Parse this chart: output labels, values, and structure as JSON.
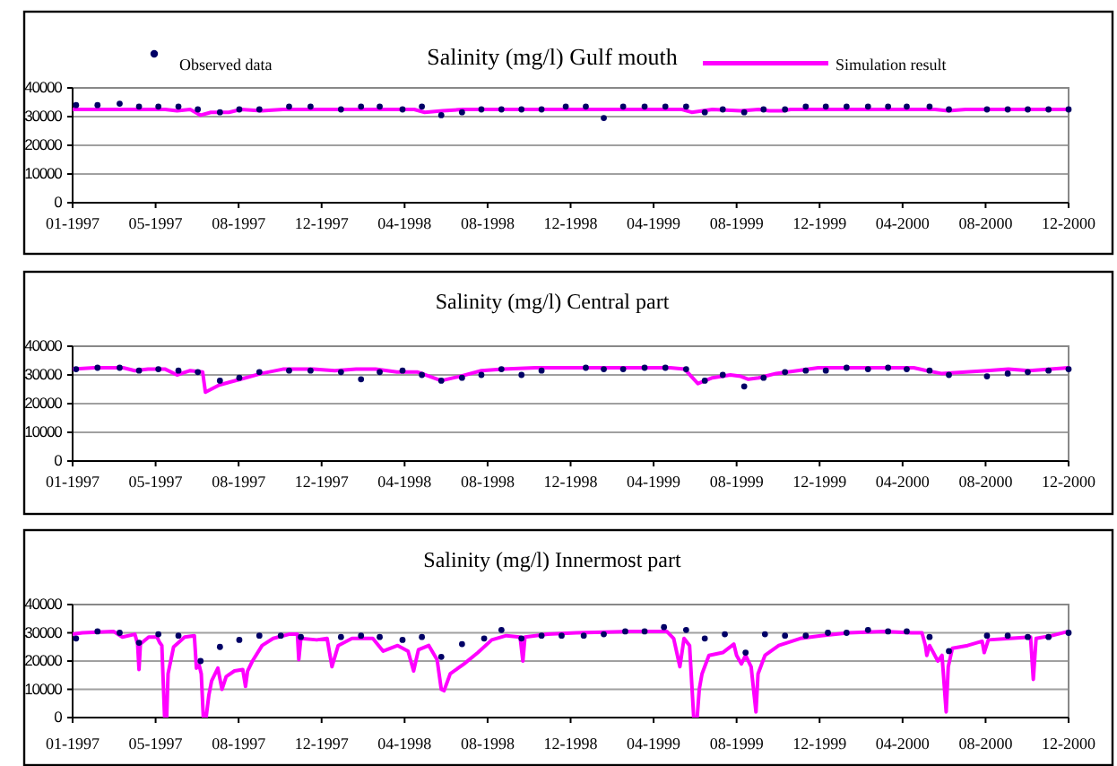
{
  "chart_data": [
    {
      "type": "line",
      "title": "Salinity (mg/l) Gulf mouth",
      "legend": "top",
      "grid": "y",
      "line_style": "solid",
      "xlim": [
        "1997-01-01",
        "2000-12-11"
      ],
      "xticks": [
        {
          "value": "1997-01-01",
          "label": "01-1997"
        },
        {
          "value": "1997-05-01",
          "label": "05-1997"
        },
        {
          "value": "1997-08-29",
          "label": "08-1997"
        },
        {
          "value": "1997-12-27",
          "label": "12-1997"
        },
        {
          "value": "1998-04-26",
          "label": "04-1998"
        },
        {
          "value": "1998-08-24",
          "label": "08-1998"
        },
        {
          "value": "1998-12-22",
          "label": "12-1998"
        },
        {
          "value": "1999-04-21",
          "label": "04-1999"
        },
        {
          "value": "1999-08-19",
          "label": "08-1999"
        },
        {
          "value": "1999-12-17",
          "label": "12-1999"
        },
        {
          "value": "2000-04-15",
          "label": "04-2000"
        },
        {
          "value": "2000-08-13",
          "label": "08-2000"
        },
        {
          "value": "2000-12-11",
          "label": "12-2000"
        }
      ],
      "ylim": [
        0,
        40000
      ],
      "yticks": [
        0,
        10000,
        20000,
        30000,
        40000
      ],
      "series": [
        {
          "name": "Observed data",
          "type": "scatter",
          "marker": "circle",
          "color": "#000066",
          "x": [
            "1997-01-06",
            "1997-02-06",
            "1997-03-10",
            "1997-04-07",
            "1997-05-05",
            "1997-06-03",
            "1997-07-01",
            "1997-08-02",
            "1997-08-30",
            "1997-09-28",
            "1997-11-10",
            "1997-12-11",
            "1998-01-24",
            "1998-02-22",
            "1998-03-21",
            "1998-04-23",
            "1998-05-21",
            "1998-06-18",
            "1998-07-18",
            "1998-08-15",
            "1998-09-13",
            "1998-10-12",
            "1998-11-10",
            "1998-12-15",
            "1999-01-13",
            "1999-02-08",
            "1999-03-08",
            "1999-04-08",
            "1999-05-08",
            "1999-06-07",
            "1999-07-04",
            "1999-07-30",
            "1999-08-30",
            "1999-09-27",
            "1999-10-28",
            "1999-11-27",
            "1999-12-26",
            "2000-01-25",
            "2000-02-25",
            "2000-03-25",
            "2000-04-21",
            "2000-05-24",
            "2000-06-21",
            "2000-08-15",
            "2000-09-14",
            "2000-10-13",
            "2000-11-12",
            "2000-12-11"
          ],
          "values": [
            34000,
            34000,
            34500,
            33500,
            33500,
            33500,
            32500,
            31500,
            32500,
            32500,
            33500,
            33500,
            32500,
            33500,
            33500,
            32500,
            33500,
            30500,
            31500,
            32500,
            32500,
            32500,
            32500,
            33500,
            33500,
            29500,
            33500,
            33500,
            33500,
            33500,
            31500,
            32500,
            31500,
            32500,
            32500,
            33500,
            33500,
            33500,
            33500,
            33500,
            33500,
            33500,
            32500,
            32500,
            32500,
            32500,
            32500,
            32500
          ]
        },
        {
          "name": "Simulation result",
          "type": "line",
          "color": "#ff00ff",
          "x": [
            "1997-01-01",
            "1997-05-15",
            "1997-06-01",
            "1997-06-20",
            "1997-07-05",
            "1997-07-20",
            "1997-08-15",
            "1997-09-01",
            "1997-10-01",
            "1997-11-01",
            "1998-05-10",
            "1998-05-25",
            "1998-06-20",
            "1998-07-20",
            "1999-06-01",
            "1999-06-15",
            "1999-07-15",
            "1999-08-25",
            "1999-09-20",
            "1999-10-05",
            "1999-10-25",
            "1999-11-05",
            "2000-06-01",
            "2000-06-20",
            "2000-07-15",
            "2000-12-11"
          ],
          "values": [
            32500,
            32500,
            32000,
            32500,
            30500,
            31500,
            31500,
            32500,
            32000,
            32500,
            32500,
            31500,
            32000,
            32500,
            32500,
            31500,
            32500,
            32000,
            32500,
            32000,
            32000,
            32500,
            32500,
            32000,
            32500,
            32500
          ]
        }
      ]
    },
    {
      "type": "line",
      "title": "Salinity (mg/l) Central part",
      "legend": false,
      "grid": "y",
      "line_style": "solid",
      "xlim": [
        "1997-01-01",
        "2000-12-11"
      ],
      "xticks": [
        {
          "value": "1997-01-01",
          "label": "01-1997"
        },
        {
          "value": "1997-05-01",
          "label": "05-1997"
        },
        {
          "value": "1997-08-29",
          "label": "08-1997"
        },
        {
          "value": "1997-12-27",
          "label": "12-1997"
        },
        {
          "value": "1998-04-26",
          "label": "04-1998"
        },
        {
          "value": "1998-08-24",
          "label": "08-1998"
        },
        {
          "value": "1998-12-22",
          "label": "12-1998"
        },
        {
          "value": "1999-04-21",
          "label": "04-1999"
        },
        {
          "value": "1999-08-19",
          "label": "08-1999"
        },
        {
          "value": "1999-12-17",
          "label": "12-1999"
        },
        {
          "value": "2000-04-15",
          "label": "04-2000"
        },
        {
          "value": "2000-08-13",
          "label": "08-2000"
        },
        {
          "value": "2000-12-11",
          "label": "12-2000"
        }
      ],
      "ylim": [
        0,
        40000
      ],
      "yticks": [
        0,
        10000,
        20000,
        30000,
        40000
      ],
      "series": [
        {
          "type": "scatter",
          "marker": "circle",
          "color": "#000066",
          "x": [
            "1997-01-06",
            "1997-02-06",
            "1997-03-10",
            "1997-04-07",
            "1997-05-05",
            "1997-06-03",
            "1997-07-01",
            "1997-08-02",
            "1997-08-30",
            "1997-09-28",
            "1997-11-10",
            "1997-12-11",
            "1998-01-24",
            "1998-02-22",
            "1998-03-21",
            "1998-04-23",
            "1998-05-21",
            "1998-06-18",
            "1998-07-18",
            "1998-08-15",
            "1998-09-13",
            "1998-10-12",
            "1998-11-10",
            "1999-01-13",
            "1999-02-08",
            "1999-03-08",
            "1999-04-08",
            "1999-05-08",
            "1999-06-07",
            "1999-07-04",
            "1999-07-30",
            "1999-08-30",
            "1999-09-27",
            "1999-10-28",
            "1999-11-27",
            "1999-12-26",
            "2000-01-25",
            "2000-02-25",
            "2000-03-25",
            "2000-04-21",
            "2000-05-24",
            "2000-06-21",
            "2000-08-15",
            "2000-09-14",
            "2000-10-13",
            "2000-11-12",
            "2000-12-11"
          ],
          "values": [
            32000,
            32500,
            32500,
            31500,
            32000,
            31500,
            31000,
            28000,
            29000,
            31000,
            31500,
            31500,
            31000,
            28500,
            31000,
            31500,
            30000,
            28000,
            29000,
            30000,
            32000,
            30000,
            31500,
            32500,
            32000,
            32000,
            32500,
            32500,
            32000,
            28000,
            30000,
            26000,
            29000,
            31000,
            31500,
            31500,
            32500,
            32000,
            32500,
            32000,
            31500,
            30000,
            29500,
            30500,
            31000,
            31500,
            32000
          ]
        },
        {
          "type": "line",
          "color": "#ff00ff",
          "x": [
            "1997-01-01",
            "1997-02-01",
            "1997-03-15",
            "1997-04-01",
            "1997-04-20",
            "1997-05-15",
            "1997-06-01",
            "1997-06-20",
            "1997-07-08",
            "1997-07-12",
            "1997-08-01",
            "1997-09-01",
            "1997-10-01",
            "1997-11-01",
            "1997-12-15",
            "1998-01-15",
            "1998-02-15",
            "1998-03-15",
            "1998-04-15",
            "1998-05-15",
            "1998-06-18",
            "1998-07-15",
            "1998-08-15",
            "1998-09-15",
            "1998-11-01",
            "1999-05-15",
            "1999-06-05",
            "1999-06-24",
            "1999-07-15",
            "1999-08-10",
            "1999-08-25",
            "1999-09-05",
            "1999-09-20",
            "1999-10-15",
            "1999-11-15",
            "1999-12-15",
            "2000-05-01",
            "2000-05-20",
            "2000-06-10",
            "2000-07-15",
            "2000-08-15",
            "2000-09-15",
            "2000-10-15",
            "2000-11-15",
            "2000-12-11"
          ],
          "values": [
            32000,
            32500,
            32500,
            31500,
            32000,
            32000,
            30000,
            31500,
            31000,
            24000,
            26500,
            28500,
            30500,
            32000,
            32000,
            31500,
            32000,
            32000,
            31000,
            31000,
            28000,
            29500,
            31500,
            32000,
            32500,
            32500,
            32000,
            27000,
            29000,
            30000,
            29500,
            28500,
            29000,
            30500,
            31500,
            32500,
            32500,
            31500,
            30500,
            31000,
            31500,
            32000,
            31500,
            32000,
            32500
          ]
        }
      ]
    },
    {
      "type": "line",
      "title": "Salinity (mg/l) Innermost part",
      "legend": false,
      "grid": "y",
      "line_style": "solid",
      "xlim": [
        "1997-01-01",
        "2000-12-11"
      ],
      "xticks": [
        {
          "value": "1997-01-01",
          "label": "01-1997"
        },
        {
          "value": "1997-05-01",
          "label": "05-1997"
        },
        {
          "value": "1997-08-29",
          "label": "08-1997"
        },
        {
          "value": "1997-12-27",
          "label": "12-1997"
        },
        {
          "value": "1998-04-26",
          "label": "04-1998"
        },
        {
          "value": "1998-08-24",
          "label": "08-1998"
        },
        {
          "value": "1998-12-22",
          "label": "12-1998"
        },
        {
          "value": "1999-04-21",
          "label": "04-1999"
        },
        {
          "value": "1999-08-19",
          "label": "08-1999"
        },
        {
          "value": "1999-12-17",
          "label": "12-1999"
        },
        {
          "value": "2000-04-15",
          "label": "04-2000"
        },
        {
          "value": "2000-08-13",
          "label": "08-2000"
        },
        {
          "value": "2000-12-11",
          "label": "12-2000"
        }
      ],
      "ylim": [
        0,
        40000
      ],
      "yticks": [
        0,
        10000,
        20000,
        30000,
        40000
      ],
      "series": [
        {
          "type": "scatter",
          "marker": "circle",
          "color": "#000066",
          "x": [
            "1997-01-06",
            "1997-02-06",
            "1997-03-10",
            "1997-04-07",
            "1997-05-05",
            "1997-06-03",
            "1997-07-05",
            "1997-08-02",
            "1997-08-30",
            "1997-09-28",
            "1997-10-29",
            "1997-11-27",
            "1998-01-24",
            "1998-02-22",
            "1998-03-21",
            "1998-04-23",
            "1998-05-21",
            "1998-06-18",
            "1998-07-18",
            "1998-08-19",
            "1998-09-13",
            "1998-10-12",
            "1998-11-10",
            "1998-12-09",
            "1999-01-10",
            "1999-02-08",
            "1999-03-11",
            "1999-04-08",
            "1999-05-06",
            "1999-06-07",
            "1999-07-04",
            "1999-08-02",
            "1999-09-01",
            "1999-09-29",
            "1999-10-28",
            "1999-11-27",
            "1999-12-29",
            "2000-01-25",
            "2000-02-25",
            "2000-03-25",
            "2000-04-21",
            "2000-05-24",
            "2000-06-21",
            "2000-08-15",
            "2000-09-14",
            "2000-10-13",
            "2000-11-12",
            "2000-12-11"
          ],
          "values": [
            28000,
            30500,
            30000,
            26500,
            29500,
            29000,
            20000,
            25000,
            27500,
            29000,
            29000,
            28500,
            28500,
            29000,
            28500,
            27500,
            28500,
            21500,
            26000,
            28000,
            31000,
            28000,
            29000,
            29000,
            29000,
            29500,
            30500,
            30500,
            32000,
            31000,
            28000,
            29500,
            23000,
            29500,
            29000,
            29000,
            30000,
            30000,
            31000,
            30500,
            30500,
            28500,
            23500,
            29000,
            29000,
            28500,
            28500,
            30000
          ]
        },
        {
          "type": "line",
          "color": "#ff00ff",
          "x": [
            "1997-01-01",
            "1997-01-15",
            "1997-03-01",
            "1997-03-14",
            "1997-04-01",
            "1997-04-05",
            "1997-04-07",
            "1997-04-09",
            "1997-04-21",
            "1997-05-03",
            "1997-05-07",
            "1997-05-10",
            "1997-05-14",
            "1997-05-17",
            "1997-05-19",
            "1997-05-27",
            "1997-06-12",
            "1997-06-26",
            "1997-06-29",
            "1997-07-03",
            "1997-07-06",
            "1997-07-09",
            "1997-07-13",
            "1997-07-17",
            "1997-07-21",
            "1997-07-30",
            "1997-08-05",
            "1997-08-11",
            "1997-08-23",
            "1997-09-04",
            "1997-09-08",
            "1997-09-11",
            "1997-09-18",
            "1997-10-02",
            "1997-10-18",
            "1997-11-10",
            "1997-11-22",
            "1997-11-24",
            "1997-11-27",
            "1997-12-20",
            "1998-01-04",
            "1998-01-11",
            "1998-01-20",
            "1998-02-09",
            "1998-03-11",
            "1998-03-26",
            "1998-04-16",
            "1998-05-01",
            "1998-05-09",
            "1998-05-16",
            "1998-05-31",
            "1998-06-12",
            "1998-06-18",
            "1998-06-22",
            "1998-07-01",
            "1998-07-21",
            "1998-08-10",
            "1998-08-30",
            "1998-09-20",
            "1998-10-10",
            "1998-10-14",
            "1998-10-17",
            "1998-11-19",
            "1998-12-30",
            "1999-03-20",
            "1999-05-10",
            "1999-05-20",
            "1999-05-29",
            "1999-06-04",
            "1999-06-12",
            "1999-06-18",
            "1999-06-23",
            "1999-06-26",
            "1999-06-30",
            "1999-07-10",
            "1999-07-30",
            "1999-08-15",
            "1999-08-19",
            "1999-08-26",
            "1999-09-01",
            "1999-09-09",
            "1999-09-16",
            "1999-09-19",
            "1999-09-29",
            "1999-10-19",
            "1999-11-19",
            "1999-12-19",
            "2000-01-28",
            "2000-03-19",
            "2000-04-28",
            "2000-05-13",
            "2000-05-18",
            "2000-05-20",
            "2000-05-24",
            "2000-06-05",
            "2000-06-11",
            "2000-06-17",
            "2000-06-20",
            "2000-06-26",
            "2000-07-18",
            "2000-08-08",
            "2000-08-11",
            "2000-08-17",
            "2000-09-17",
            "2000-10-17",
            "2000-10-21",
            "2000-10-25",
            "2000-11-17",
            "2000-12-11"
          ],
          "values": [
            29500,
            30000,
            30500,
            28500,
            29500,
            26000,
            17000,
            26000,
            28500,
            28500,
            26500,
            25500,
            0,
            0,
            15500,
            25000,
            28500,
            29000,
            17500,
            18500,
            15500,
            0,
            0,
            8000,
            13000,
            17500,
            10000,
            14500,
            16500,
            17000,
            11000,
            16500,
            20000,
            25500,
            28000,
            29500,
            29500,
            20500,
            28000,
            27500,
            28000,
            18000,
            25500,
            28000,
            28000,
            23500,
            25500,
            23500,
            16500,
            24000,
            25500,
            20500,
            10000,
            9500,
            15500,
            19000,
            23000,
            27500,
            29000,
            28500,
            20000,
            28500,
            29500,
            30000,
            30500,
            30500,
            28000,
            18000,
            28000,
            25500,
            0,
            0,
            10000,
            15500,
            22000,
            23000,
            26000,
            22000,
            19000,
            22000,
            18000,
            2000,
            15500,
            22000,
            25500,
            28000,
            29000,
            30000,
            30500,
            30000,
            30000,
            25500,
            22000,
            25500,
            20000,
            22000,
            2000,
            18000,
            24500,
            25500,
            27000,
            23000,
            27500,
            28000,
            28500,
            13500,
            28000,
            29000,
            30500
          ]
        }
      ]
    }
  ]
}
